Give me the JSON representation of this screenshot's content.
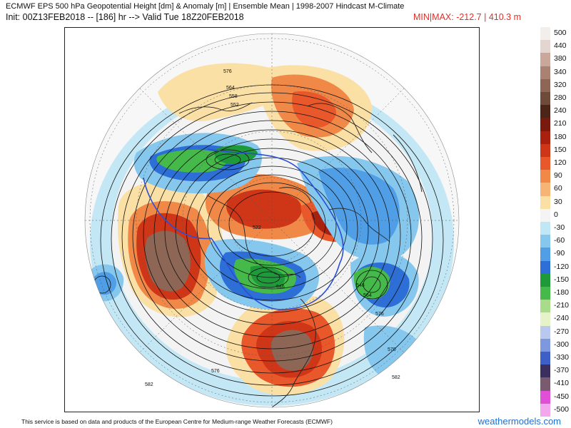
{
  "header": {
    "line1": "ECMWF EPS 500 hPa Geopotential Height [dm] & Anomaly [m] | Ensemble Mean | 1998-2007 Hindcast M-Climate",
    "line2": "Init: 00Z13FEB2018 -- [186] hr --> Valid Tue 18Z20FEB2018",
    "minmax": "MIN|MAX: -212.7 | 410.3 m"
  },
  "legend": {
    "levels": [
      {
        "label": "500",
        "color": "#f2eeec"
      },
      {
        "label": "440",
        "color": "#e3d6d0"
      },
      {
        "label": "380",
        "color": "#c9a79b"
      },
      {
        "label": "340",
        "color": "#a98273"
      },
      {
        "label": "320",
        "color": "#8e6656"
      },
      {
        "label": "280",
        "color": "#6e4a3a"
      },
      {
        "label": "240",
        "color": "#4c2418"
      },
      {
        "label": "210",
        "color": "#7a1a0e"
      },
      {
        "label": "180",
        "color": "#a8210f"
      },
      {
        "label": "150",
        "color": "#cf3517"
      },
      {
        "label": "120",
        "color": "#e8582a"
      },
      {
        "label": "90",
        "color": "#f08848"
      },
      {
        "label": "60",
        "color": "#f6b574"
      },
      {
        "label": "30",
        "color": "#fbe0a6"
      },
      {
        "label": "0",
        "color": "#f4f4f4"
      },
      {
        "label": "-30",
        "color": "#bfe7f5"
      },
      {
        "label": "-60",
        "color": "#86c7ee"
      },
      {
        "label": "-90",
        "color": "#4f9ee6"
      },
      {
        "label": "-120",
        "color": "#2d6fd6"
      },
      {
        "label": "-150",
        "color": "#1f9a3a"
      },
      {
        "label": "-180",
        "color": "#45b94a"
      },
      {
        "label": "-210",
        "color": "#a8dc8a"
      },
      {
        "label": "-240",
        "color": "#e6f2c8"
      },
      {
        "label": "-270",
        "color": "#b9c8ee"
      },
      {
        "label": "-300",
        "color": "#7e98e0"
      },
      {
        "label": "-330",
        "color": "#3e5fc8"
      },
      {
        "label": "-370",
        "color": "#3b2f5f"
      },
      {
        "label": "-410",
        "color": "#7a5a6e"
      },
      {
        "label": "-450",
        "color": "#e04fd6"
      },
      {
        "label": "-500",
        "color": "#f3a8ee"
      }
    ]
  },
  "map": {
    "contour_labels": [
      "576",
      "564",
      "558",
      "552",
      "522",
      "546",
      "546",
      "564",
      "576",
      "570",
      "582",
      "582",
      "576"
    ]
  },
  "footer": {
    "disclaimer": "This service is based on data and products of the European Centre for Medium-range Weather Forecasts (ECMWF)",
    "brand": "weathermodels.com"
  }
}
